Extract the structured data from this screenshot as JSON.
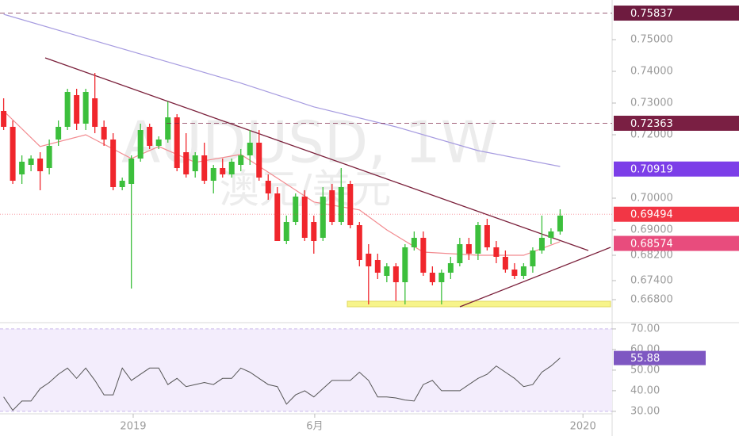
{
  "chart_data": [
    {
      "type": "candlestick",
      "watermark": "AUDUSD, 1W",
      "watermark_sub": "澳元/美元",
      "up_color": "#3cbf3c",
      "down_color": "#f0262c",
      "candles": [
        [
          0.7275,
          0.7315,
          0.7215,
          0.7225
        ],
        [
          0.7225,
          0.7245,
          0.7045,
          0.7055
        ],
        [
          0.7075,
          0.7135,
          0.7045,
          0.7115
        ],
        [
          0.7105,
          0.7135,
          0.7085,
          0.7125
        ],
        [
          0.7125,
          0.7145,
          0.7025,
          0.7085
        ],
        [
          0.7095,
          0.7185,
          0.7075,
          0.7165
        ],
        [
          0.7185,
          0.7245,
          0.7165,
          0.7225
        ],
        [
          0.7225,
          0.7345,
          0.7215,
          0.7335
        ],
        [
          0.7325,
          0.7345,
          0.7215,
          0.7235
        ],
        [
          0.7235,
          0.7345,
          0.7215,
          0.7335
        ],
        [
          0.7315,
          0.7395,
          0.7205,
          0.7225
        ],
        [
          0.7225,
          0.7245,
          0.7165,
          0.7185
        ],
        [
          0.7185,
          0.7205,
          0.7025,
          0.7035
        ],
        [
          0.7035,
          0.7065,
          0.7025,
          0.7055
        ],
        [
          0.7045,
          0.7135,
          0.6715,
          0.7125
        ],
        [
          0.7125,
          0.7235,
          0.7115,
          0.7215
        ],
        [
          0.7225,
          0.7235,
          0.7155,
          0.7165
        ],
        [
          0.7165,
          0.7195,
          0.7155,
          0.7185
        ],
        [
          0.7185,
          0.7305,
          0.7175,
          0.7255
        ],
        [
          0.7255,
          0.7265,
          0.7085,
          0.7095
        ],
        [
          0.7145,
          0.7205,
          0.7065,
          0.7075
        ],
        [
          0.7085,
          0.7145,
          0.7065,
          0.7135
        ],
        [
          0.7135,
          0.7175,
          0.7045,
          0.7055
        ],
        [
          0.7055,
          0.7105,
          0.7015,
          0.7095
        ],
        [
          0.7095,
          0.7125,
          0.7065,
          0.7075
        ],
        [
          0.7075,
          0.7125,
          0.7065,
          0.7115
        ],
        [
          0.7105,
          0.7155,
          0.7085,
          0.7135
        ],
        [
          0.7135,
          0.7215,
          0.7105,
          0.7175
        ],
        [
          0.7175,
          0.7215,
          0.7055,
          0.7065
        ],
        [
          0.7055,
          0.7075,
          0.6995,
          0.7015
        ],
        [
          0.7015,
          0.7035,
          0.6865,
          0.6865
        ],
        [
          0.6865,
          0.6945,
          0.6855,
          0.6925
        ],
        [
          0.6925,
          0.7015,
          0.6915,
          0.7005
        ],
        [
          0.7005,
          0.7025,
          0.6865,
          0.6875
        ],
        [
          0.6925,
          0.6945,
          0.6825,
          0.6865
        ],
        [
          0.6875,
          0.7035,
          0.6865,
          0.7005
        ],
        [
          0.7025,
          0.7045,
          0.6915,
          0.6925
        ],
        [
          0.6925,
          0.7095,
          0.6915,
          0.7035
        ],
        [
          0.7045,
          0.7055,
          0.6905,
          0.6915
        ],
        [
          0.6915,
          0.6925,
          0.6785,
          0.6805
        ],
        [
          0.6825,
          0.6855,
          0.6665,
          0.6785
        ],
        [
          0.6805,
          0.6825,
          0.6745,
          0.6765
        ],
        [
          0.6755,
          0.6795,
          0.6735,
          0.6785
        ],
        [
          0.6785,
          0.6795,
          0.6675,
          0.6735
        ],
        [
          0.6735,
          0.6855,
          0.6665,
          0.6845
        ],
        [
          0.6845,
          0.6895,
          0.6835,
          0.6875
        ],
        [
          0.6875,
          0.6895,
          0.6755,
          0.6765
        ],
        [
          0.6765,
          0.6785,
          0.6725,
          0.6735
        ],
        [
          0.6735,
          0.6775,
          0.6665,
          0.6765
        ],
        [
          0.6765,
          0.6815,
          0.6745,
          0.6795
        ],
        [
          0.6795,
          0.6875,
          0.6785,
          0.6855
        ],
        [
          0.6855,
          0.6875,
          0.6805,
          0.6825
        ],
        [
          0.6825,
          0.6925,
          0.6805,
          0.6915
        ],
        [
          0.6915,
          0.6935,
          0.6835,
          0.6845
        ],
        [
          0.6845,
          0.6865,
          0.6795,
          0.6815
        ],
        [
          0.6815,
          0.6835,
          0.6765,
          0.6775
        ],
        [
          0.6775,
          0.6795,
          0.6745,
          0.6755
        ],
        [
          0.6755,
          0.6795,
          0.6745,
          0.6785
        ],
        [
          0.6785,
          0.6845,
          0.6765,
          0.6835
        ],
        [
          0.6835,
          0.6945,
          0.6825,
          0.6875
        ],
        [
          0.6875,
          0.6905,
          0.6855,
          0.6895
        ],
        [
          0.6895,
          0.6965,
          0.6885,
          0.6945
        ]
      ],
      "lines": [
        {
          "color": "#a69be0",
          "x": [
            0,
            8,
            17,
            26,
            34,
            43,
            52,
            61
          ],
          "values": [
            0.758,
            0.7513,
            0.7438,
            0.7363,
            0.7288,
            0.7225,
            0.715,
            0.71
          ]
        },
        {
          "color": "#f28a8f",
          "x": [
            0,
            4,
            9,
            14,
            17,
            21,
            26,
            30,
            34,
            39,
            42,
            46,
            52,
            57,
            61
          ],
          "values": [
            0.7275,
            0.7163,
            0.72,
            0.7125,
            0.7163,
            0.7113,
            0.7138,
            0.7063,
            0.6988,
            0.6963,
            0.69,
            0.683,
            0.682,
            0.682,
            0.6863
          ]
        }
      ],
      "xlim": [
        -0.4,
        66.7
      ],
      "ylim": [
        0.66125,
        0.7625
      ],
      "yticks": [
        {
          "value": 0.75,
          "label": "0.75000"
        },
        {
          "value": 0.74,
          "label": "0.74000"
        },
        {
          "value": 0.73,
          "label": "0.73000"
        },
        {
          "value": 0.72,
          "label": "0.72000"
        },
        {
          "value": 0.7,
          "label": "0.70000"
        },
        {
          "value": 0.69,
          "label": "0.69000"
        },
        {
          "value": 0.682,
          "label": "0.68200"
        },
        {
          "value": 0.674,
          "label": "0.67400"
        },
        {
          "value": 0.668,
          "label": "0.66800"
        }
      ],
      "price_labels": [
        {
          "value": 0.75837,
          "label": "0.75837",
          "color": "#6e1b3f",
          "line": "dashed"
        },
        {
          "value": 0.72363,
          "label": "0.72363",
          "color": "#7a1f43",
          "line": "dashed"
        },
        {
          "value": 0.70919,
          "label": "0.70919",
          "color": "#7c3ee8"
        },
        {
          "value": 0.69494,
          "label": "0.69494",
          "color": "#f23645",
          "line": "dotted"
        },
        {
          "value": 0.68574,
          "label": "0.68574",
          "color": "#e84c7d"
        }
      ]
    },
    {
      "type": "line",
      "color": "#555555",
      "values": [
        37,
        30.5,
        35,
        35,
        41,
        44,
        48,
        51,
        46,
        51,
        45,
        38,
        38,
        51,
        45,
        48,
        51,
        51,
        43,
        46,
        42,
        43,
        44,
        43,
        46,
        46,
        51,
        49,
        46,
        43,
        42,
        33.5,
        38,
        40,
        37,
        41,
        45,
        45,
        45,
        49,
        45,
        37,
        37,
        36.5,
        35.5,
        35,
        43,
        45,
        40,
        40,
        40,
        43,
        46,
        48,
        52,
        49,
        46,
        42,
        43,
        49,
        52,
        55.88
      ],
      "xlim": [
        -0.4,
        66.7
      ],
      "ylim": [
        28.8,
        71.9
      ],
      "yticks": [
        {
          "value": 70,
          "label": "70.00"
        },
        {
          "value": 60,
          "label": "60.00"
        },
        {
          "value": 50,
          "label": "50.00"
        },
        {
          "value": 40,
          "label": "40.00"
        },
        {
          "value": 30,
          "label": "30.00"
        }
      ],
      "band": [
        30,
        70
      ],
      "last_label": {
        "value": 55.88,
        "label": "55.88",
        "color": "#7e57c2"
      },
      "xticks": [
        {
          "value": 14.2,
          "label": "2019"
        },
        {
          "value": 34.1,
          "label": "6月"
        },
        {
          "value": 63.5,
          "label": "2020"
        }
      ]
    }
  ]
}
